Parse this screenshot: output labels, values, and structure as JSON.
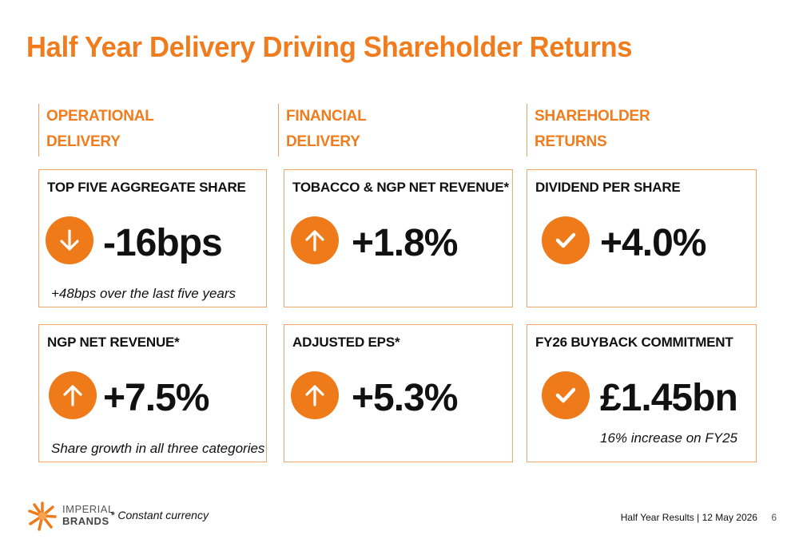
{
  "title": "Half Year Delivery Driving Shareholder Returns",
  "columns": [
    {
      "line1": "OPERATIONAL",
      "line2": "DELIVERY"
    },
    {
      "line1": "FINANCIAL",
      "line2": "DELIVERY"
    },
    {
      "line1": "SHAREHOLDER",
      "line2": "RETURNS"
    }
  ],
  "cards": {
    "top_five": {
      "label": "TOP FIVE AGGREGATE SHARE",
      "icon": "arrow-down-icon",
      "value": "-16bps",
      "note": "+48bps over the last five years"
    },
    "tobacco_ngp": {
      "label": "TOBACCO & NGP NET REVENUE*",
      "icon": "arrow-up-icon",
      "value": "+1.8%"
    },
    "dividend": {
      "label": "DIVIDEND PER SHARE",
      "icon": "checkmark-icon",
      "value": "+4.0%"
    },
    "ngp_revenue": {
      "label": "NGP NET REVENUE*",
      "icon": "arrow-up-icon",
      "value": "+7.5%",
      "note": "Share growth in all three categories"
    },
    "adjusted_eps": {
      "label": "ADJUSTED EPS*",
      "icon": "arrow-up-icon",
      "value": "+5.3%"
    },
    "buyback": {
      "label": "FY26 BUYBACK COMMITMENT",
      "icon": "checkmark-icon",
      "value": "£1.45bn",
      "note": "16% increase on FY25"
    }
  },
  "footer": {
    "brand_line1": "IMPERIAL",
    "brand_line2": "BRANDS",
    "note": "* Constant currency",
    "right_text": "Half Year Results | 12 May 2026",
    "page": "6"
  },
  "colors": {
    "accent": "#ef7a1a",
    "title": "#f07c1e",
    "card_border": "#f4a56a"
  }
}
